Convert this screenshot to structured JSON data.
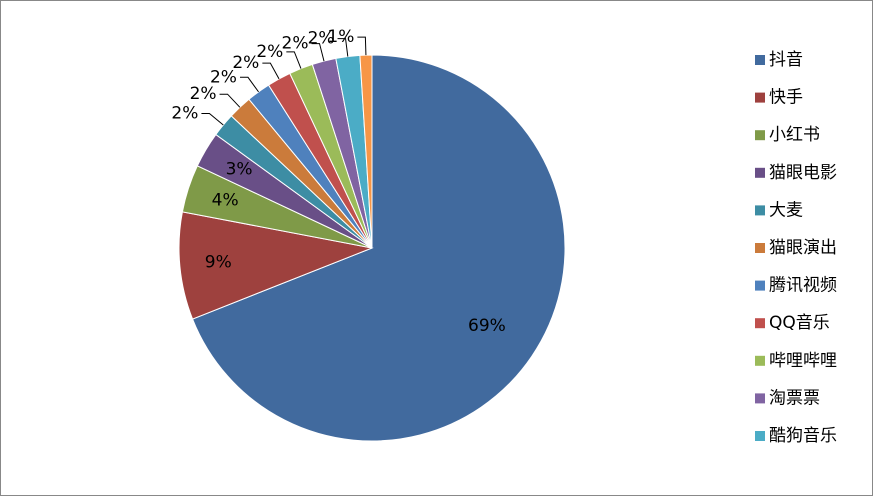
{
  "chart_data": {
    "type": "pie",
    "categories": [
      "抖音",
      "快手",
      "小红书",
      "猫眼电影",
      "大麦",
      "猫眼演出",
      "腾讯视频",
      "QQ音乐",
      "哔哩哔哩",
      "淘票票",
      "酷狗音乐",
      null
    ],
    "values": [
      69,
      9,
      4,
      3,
      2,
      2,
      2,
      2,
      2,
      2,
      2,
      1
    ],
    "value_labels": [
      "69%",
      "9%",
      "4%",
      "3%",
      "2%",
      "2%",
      "2%",
      "2%",
      "2%",
      "2%",
      "2%",
      "1%"
    ],
    "colors": [
      "#416A9E",
      "#9E413E",
      "#7F9A48",
      "#694F87",
      "#3D8DA4",
      "#CB7B3B",
      "#4F81BD",
      "#C0504D",
      "#9BBB59",
      "#8064A2",
      "#4BACC6",
      "#F79646"
    ],
    "legend": "right"
  }
}
